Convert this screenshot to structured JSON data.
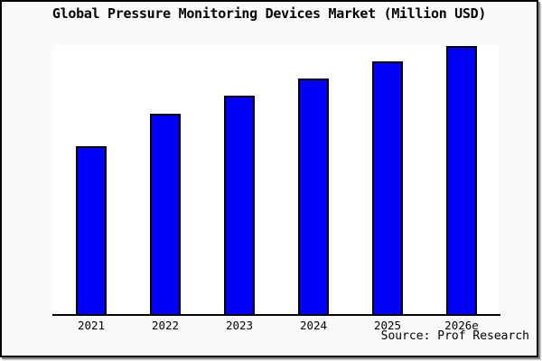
{
  "window": {
    "background_color": "#fafafa",
    "frame_border_color": "#000000",
    "shadow_color": "#8c8c8c"
  },
  "chart_data": {
    "type": "bar",
    "title": "Global Pressure Monitoring Devices Market (Million USD)",
    "categories": [
      "2021",
      "2022",
      "2023",
      "2024",
      "2025",
      "2026e"
    ],
    "values": [
      62.8,
      74.8,
      81.5,
      87.9,
      94.3,
      100
    ],
    "value_note": "y-axis is unlabeled in the image; values are relative bar heights indexed to 2026e = 100",
    "ylim": [
      0,
      100.3
    ],
    "xlabel": "",
    "ylabel": "",
    "grid": false,
    "legend": "none",
    "bar_color": "#0101f7",
    "bar_border_color": "#000000",
    "axis_color": "#000000",
    "plot_background": "#ffffff"
  },
  "footer": {
    "source": "Source: Prof Research"
  }
}
